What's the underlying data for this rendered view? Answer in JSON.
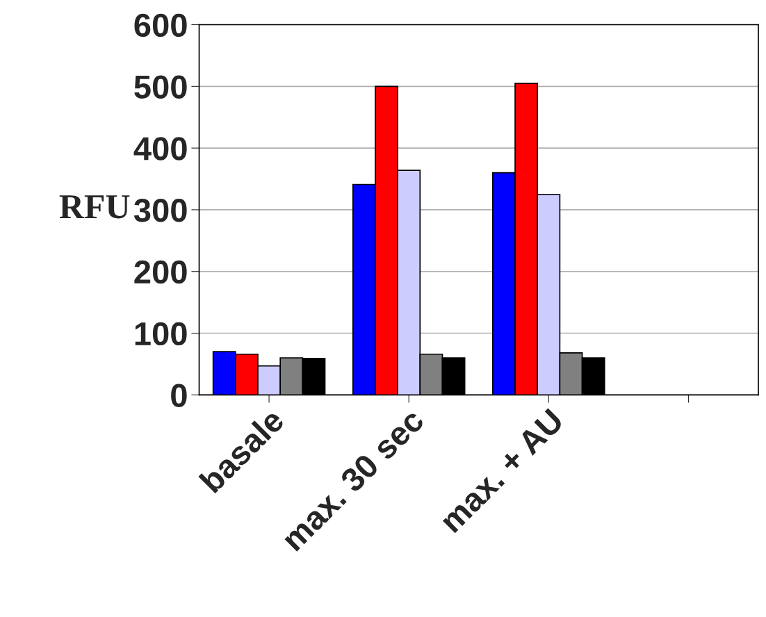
{
  "chart_data": {
    "type": "bar",
    "ylabel": "RFU",
    "categories": [
      "basale",
      "max. 30 sec",
      "max. + AU",
      null
    ],
    "series": [
      {
        "color": "#0000ff",
        "values": [
          70,
          341,
          360,
          null
        ]
      },
      {
        "color": "#ff0000",
        "values": [
          66,
          500,
          505,
          null
        ]
      },
      {
        "color": "#ccccff",
        "values": [
          47,
          364,
          325,
          null
        ]
      },
      {
        "color": "#808080",
        "values": [
          60,
          66,
          68,
          null
        ]
      },
      {
        "color": "#000000",
        "values": [
          59,
          60,
          60,
          null
        ]
      }
    ],
    "ylim": [
      0,
      600
    ],
    "yticks": [
      0,
      100,
      200,
      300,
      400,
      500,
      600
    ],
    "grid": "y"
  }
}
